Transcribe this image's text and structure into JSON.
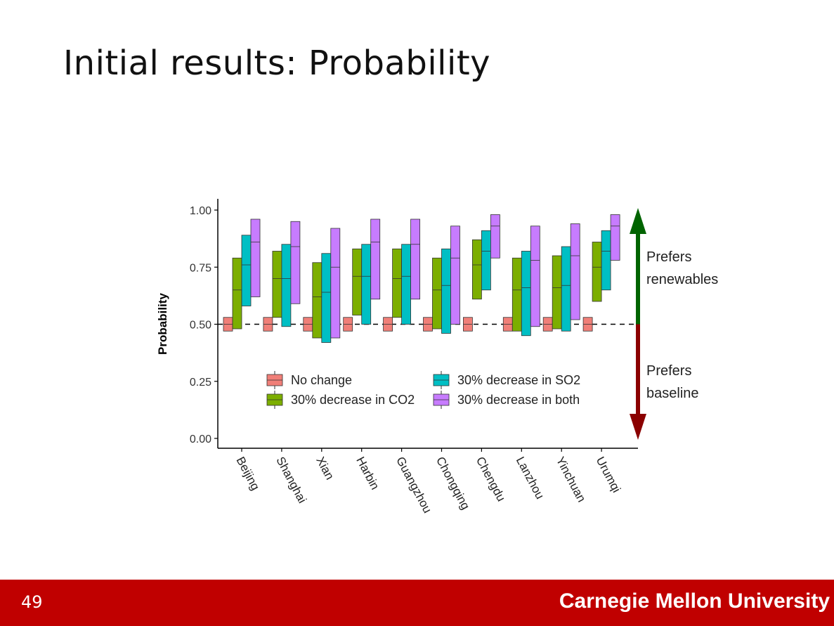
{
  "slide": {
    "title": "Initial results: Probability",
    "page_number": "49",
    "footer_org": "Carnegie Mellon University"
  },
  "colors": {
    "no_change": "#f07f78",
    "co2": "#7cae00",
    "so2": "#00bfc4",
    "both": "#c77cff",
    "renewables_arrow": "#006400",
    "baseline_arrow": "#8b0000",
    "footer": "#c00000"
  },
  "chart_data": {
    "type": "boxplot",
    "ylabel": "Probability",
    "ylim": [
      0,
      1
    ],
    "yticks": [
      "0.00",
      "0.25",
      "0.50",
      "0.75",
      "1.00"
    ],
    "reference_line": 0.5,
    "categories": [
      "Beijing",
      "Shanghai",
      "Xian",
      "Harbin",
      "Guangzhou",
      "Chongqing",
      "Chengdu",
      "Lanzhou",
      "Yinchuan",
      "Urumqi"
    ],
    "series": [
      {
        "name": "No change",
        "color_key": "no_change",
        "boxes": [
          [
            0.47,
            0.5,
            0.53
          ],
          [
            0.47,
            0.5,
            0.53
          ],
          [
            0.47,
            0.5,
            0.53
          ],
          [
            0.47,
            0.5,
            0.53
          ],
          [
            0.47,
            0.5,
            0.53
          ],
          [
            0.47,
            0.5,
            0.53
          ],
          [
            0.47,
            0.5,
            0.53
          ],
          [
            0.47,
            0.5,
            0.53
          ],
          [
            0.47,
            0.5,
            0.53
          ],
          [
            0.47,
            0.5,
            0.53
          ]
        ]
      },
      {
        "name": "30% decrease in CO2",
        "color_key": "co2",
        "boxes": [
          [
            0.48,
            0.65,
            0.79
          ],
          [
            0.53,
            0.7,
            0.82
          ],
          [
            0.44,
            0.62,
            0.77
          ],
          [
            0.54,
            0.71,
            0.83
          ],
          [
            0.53,
            0.7,
            0.83
          ],
          [
            0.48,
            0.65,
            0.79
          ],
          [
            0.61,
            0.76,
            0.87
          ],
          [
            0.47,
            0.65,
            0.79
          ],
          [
            0.48,
            0.66,
            0.8
          ],
          [
            0.6,
            0.75,
            0.86
          ]
        ]
      },
      {
        "name": "30% decrease in SO2",
        "color_key": "so2",
        "boxes": [
          [
            0.58,
            0.76,
            0.89
          ],
          [
            0.49,
            0.7,
            0.85
          ],
          [
            0.42,
            0.64,
            0.81
          ],
          [
            0.5,
            0.71,
            0.85
          ],
          [
            0.5,
            0.71,
            0.85
          ],
          [
            0.46,
            0.67,
            0.83
          ],
          [
            0.65,
            0.82,
            0.91
          ],
          [
            0.45,
            0.66,
            0.82
          ],
          [
            0.47,
            0.67,
            0.84
          ],
          [
            0.65,
            0.82,
            0.91
          ]
        ]
      },
      {
        "name": "30% decrease in both",
        "color_key": "both",
        "boxes": [
          [
            0.62,
            0.86,
            0.96
          ],
          [
            0.59,
            0.84,
            0.95
          ],
          [
            0.44,
            0.75,
            0.92
          ],
          [
            0.61,
            0.86,
            0.96
          ],
          [
            0.61,
            0.85,
            0.96
          ],
          [
            0.5,
            0.79,
            0.93
          ],
          [
            0.79,
            0.93,
            0.98
          ],
          [
            0.49,
            0.78,
            0.93
          ],
          [
            0.52,
            0.8,
            0.94
          ],
          [
            0.78,
            0.93,
            0.98
          ]
        ]
      }
    ],
    "legend": {
      "position": "bottom-inside",
      "entries": [
        "No change",
        "30% decrease in SO2",
        "30% decrease in CO2",
        "30% decrease in both"
      ]
    },
    "annotations": {
      "up_label_line1": "Prefers",
      "up_label_line2": "renewables",
      "down_label_line1": "Prefers",
      "down_label_line2": "baseline"
    }
  }
}
